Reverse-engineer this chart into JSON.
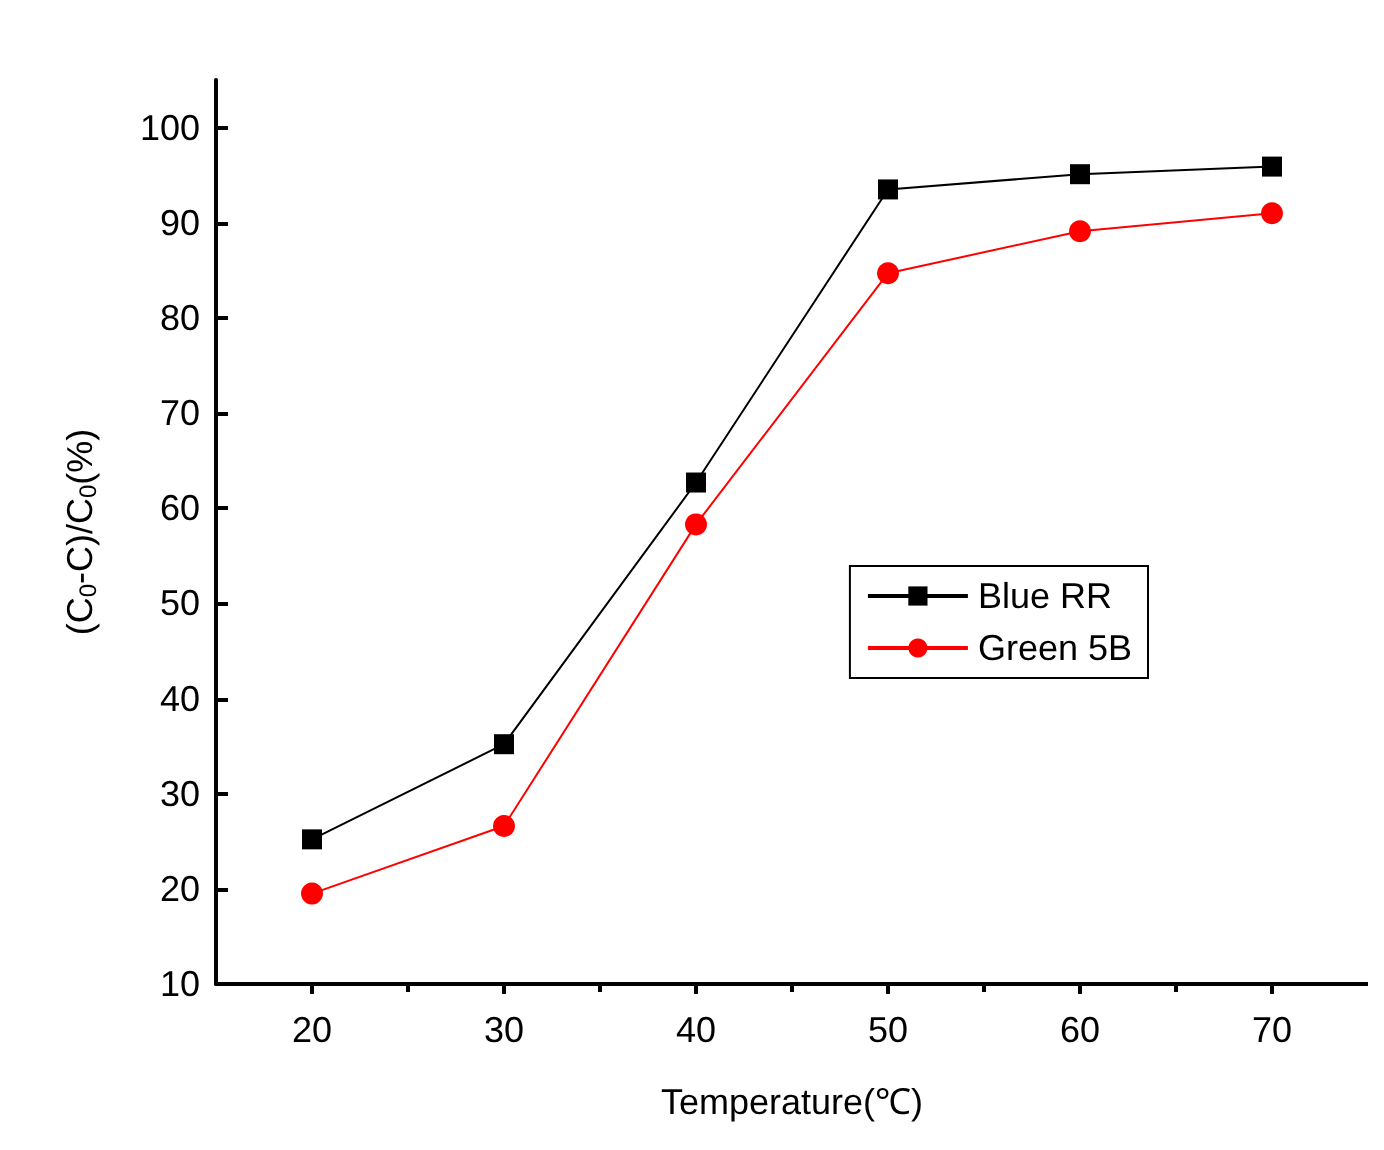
{
  "chart_data": {
    "type": "line",
    "xlabel": "Temperature(℃)",
    "ylabel": "(C$_{0}$-C)/C$_{0}$(%)",
    "x": [
      20,
      30,
      40,
      50,
      60,
      70
    ],
    "series": [
      {
        "name": "Blue RR",
        "color": "#000000",
        "marker": "square",
        "values": [
          25.2,
          35.2,
          62.7,
          93.5,
          95.1,
          95.9
        ]
      },
      {
        "name": "Green 5B",
        "color": "#ff0000",
        "marker": "circle",
        "values": [
          19.5,
          26.6,
          58.3,
          84.7,
          89.1,
          91.0
        ]
      }
    ],
    "xlim": [
      15,
      75
    ],
    "xticks": [
      20,
      30,
      40,
      50,
      60,
      70
    ],
    "ylim": [
      10,
      105
    ],
    "yticks": [
      10,
      20,
      30,
      40,
      50,
      60,
      70,
      80,
      90,
      100
    ],
    "grid": false,
    "legend": "right",
    "line_style": "solid"
  }
}
